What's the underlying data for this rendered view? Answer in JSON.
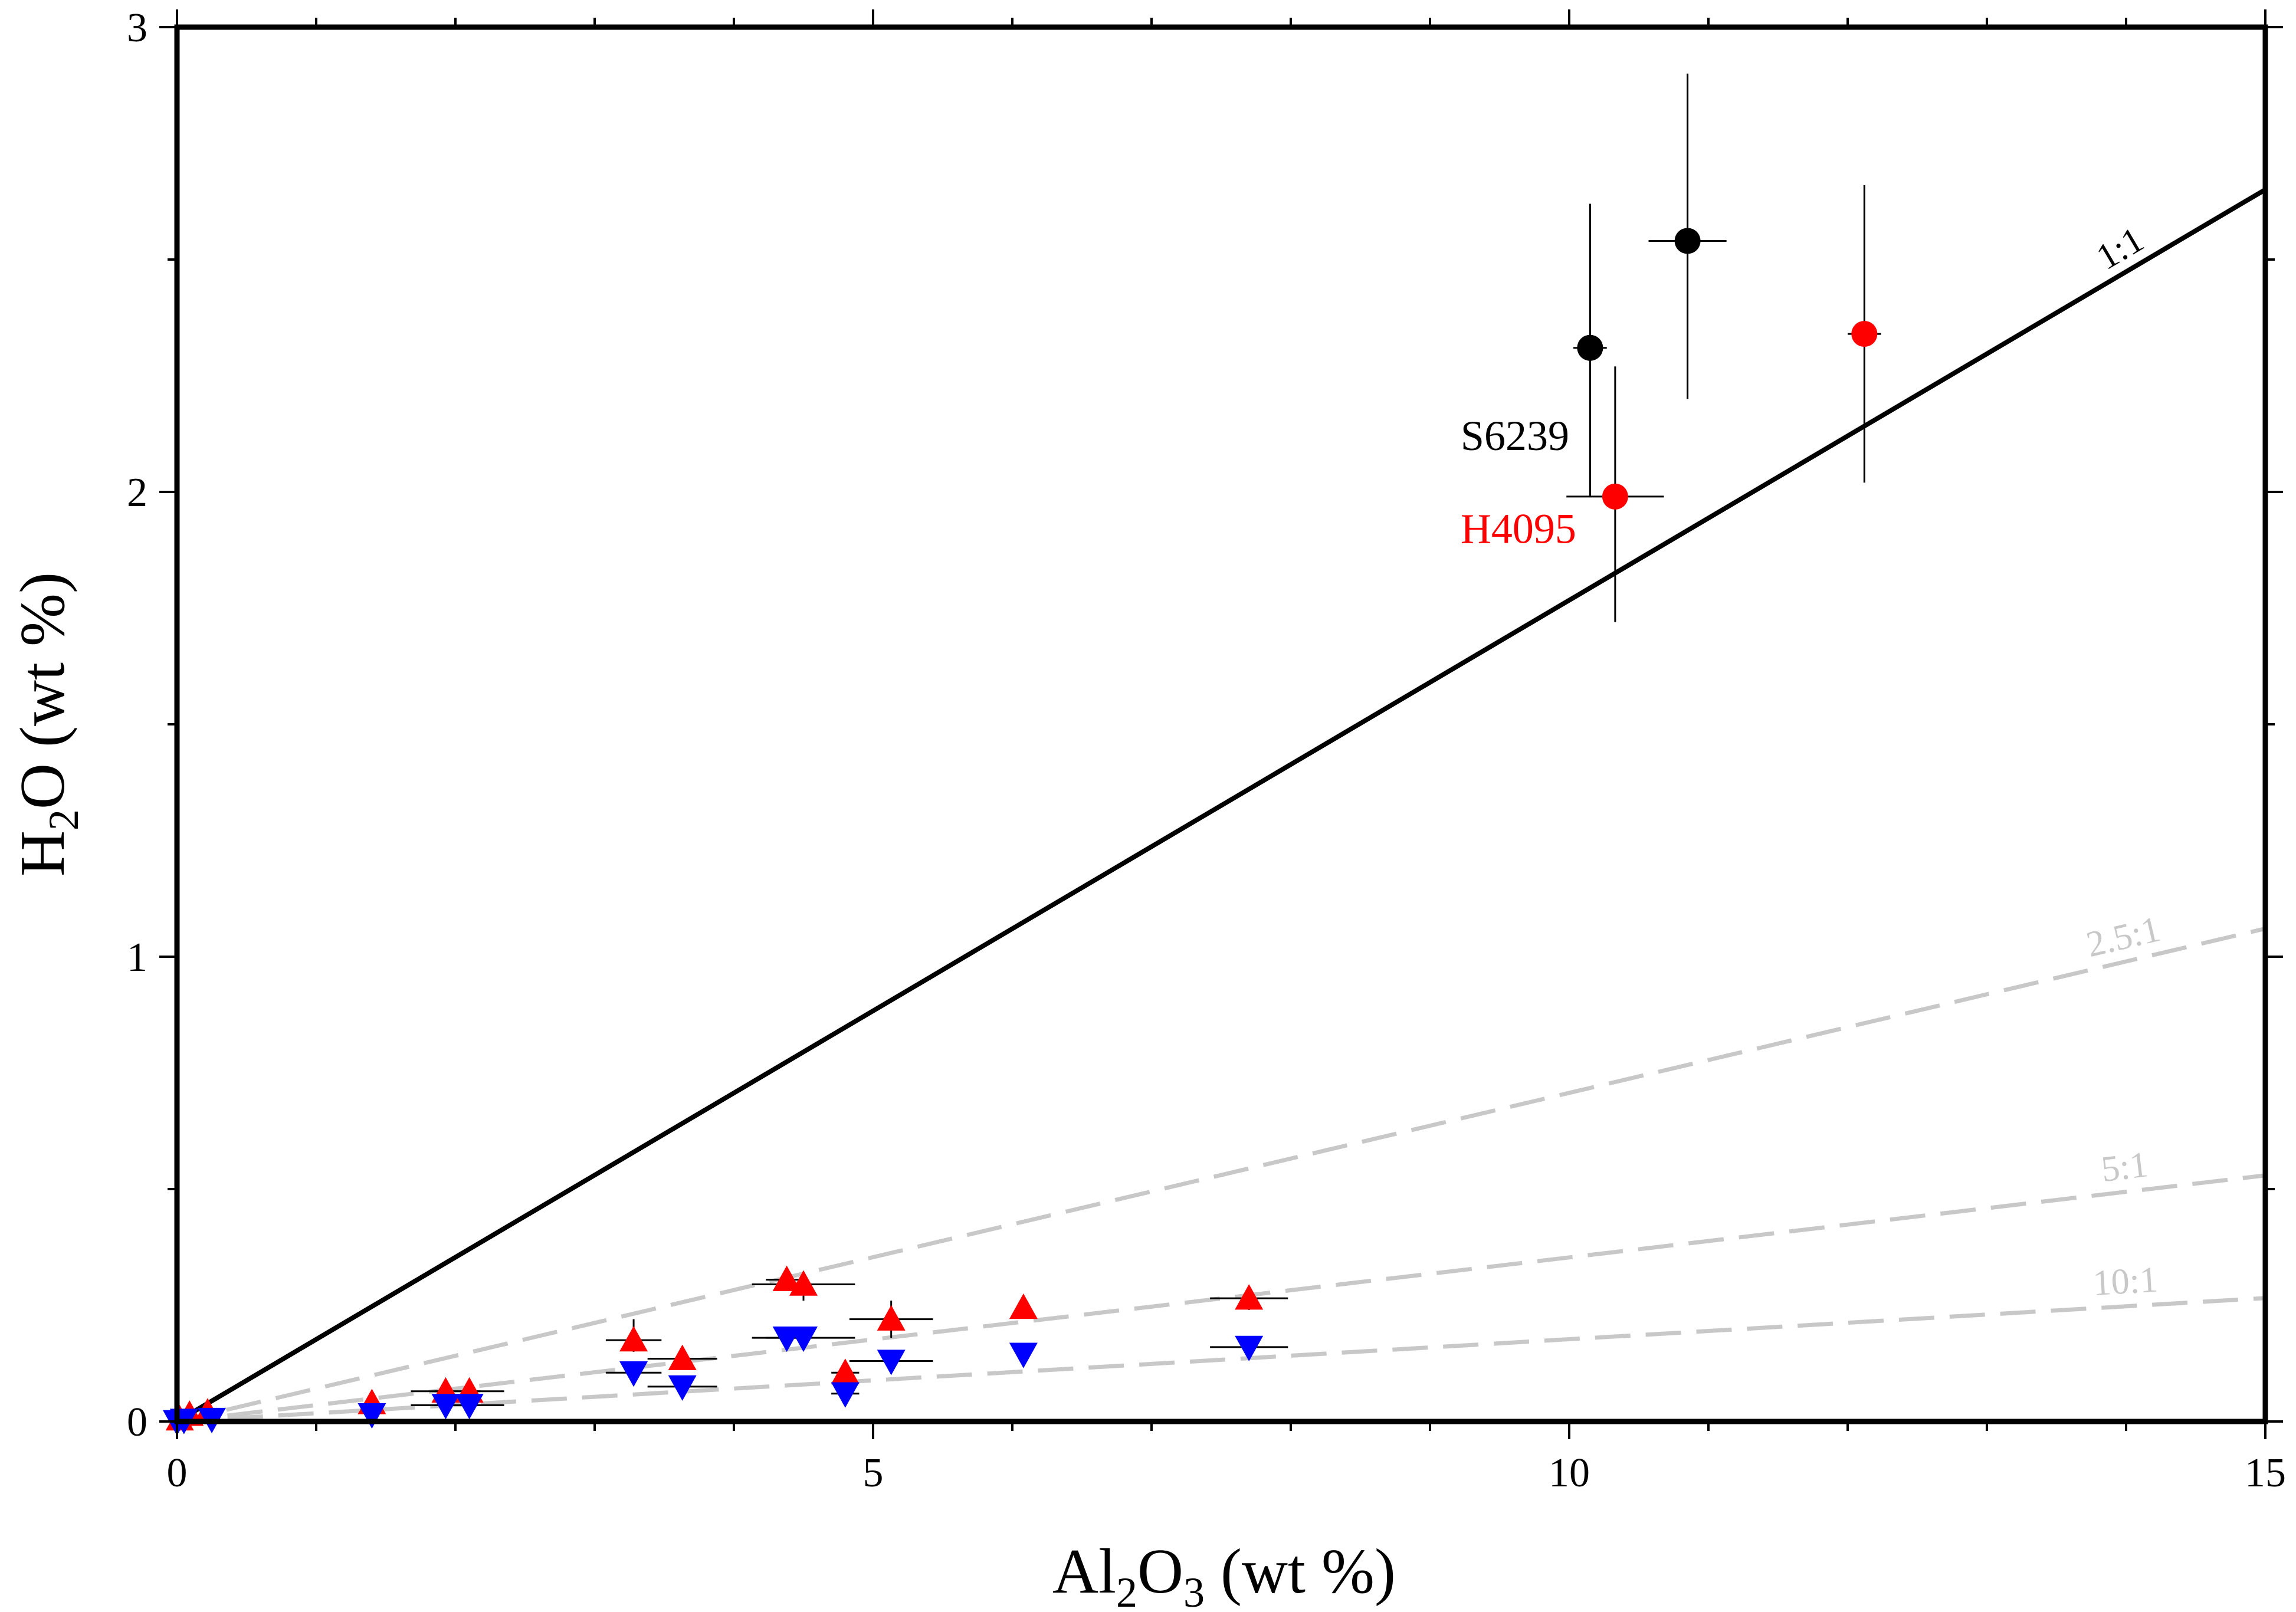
{
  "chart_data": {
    "type": "scatter",
    "title": "",
    "xlabel": {
      "main": "Al",
      "sub": "2",
      "sub_after": "O",
      "sub2": "3",
      "rest": " (wt %)"
    },
    "ylabel": {
      "main": "H",
      "sub": "2",
      "rest": "O (wt %)"
    },
    "xlim": [
      0,
      15
    ],
    "ylim": [
      0,
      3
    ],
    "x_ticks": [
      "0",
      "5",
      "10",
      "15"
    ],
    "x_tick_values": [
      0,
      5,
      10,
      15
    ],
    "y_ticks": [
      "0",
      "1",
      "2",
      "3"
    ],
    "y_tick_values": [
      0,
      1,
      2,
      3
    ],
    "x_minor_step": 1,
    "y_minor_step": 0.5,
    "grid": false,
    "colors": {
      "black": "#000000",
      "red": "#ff0000",
      "blue": "#0000ff",
      "gray": "#c8c8c8"
    },
    "ratio_lines": [
      {
        "label": "1:1",
        "slope": 0.1767,
        "style": "solid",
        "color": "#000000"
      },
      {
        "label": "2.5:1",
        "slope": 0.0707,
        "style": "dashed",
        "color": "#c8c8c8"
      },
      {
        "label": "5:1",
        "slope": 0.0353,
        "style": "dashed",
        "color": "#c8c8c8"
      },
      {
        "label": "10:1",
        "slope": 0.0177,
        "style": "dashed",
        "color": "#c8c8c8"
      }
    ],
    "labels": [
      {
        "text": "S6239",
        "x": 9.22,
        "y": 2.09,
        "color": "#000000"
      },
      {
        "text": "H4095",
        "x": 9.22,
        "y": 1.89,
        "color": "#ff0000"
      }
    ],
    "series": [
      {
        "marker": "circle",
        "color": "#000000",
        "points": [
          {
            "x": 10.15,
            "y": 2.31,
            "xerr": 0.12,
            "ylo": 1.99,
            "yhi": 2.62
          },
          {
            "x": 10.85,
            "y": 2.54,
            "xerr": 0.28,
            "ylo": 2.2,
            "yhi": 2.9
          }
        ]
      },
      {
        "marker": "circle",
        "color": "#ff0000",
        "points": [
          {
            "x": 10.33,
            "y": 1.99,
            "xerr": 0.35,
            "ylo": 1.72,
            "yhi": 2.27
          },
          {
            "x": 12.12,
            "y": 2.34,
            "xerr": 0.12,
            "ylo": 2.02,
            "yhi": 2.66
          }
        ]
      },
      {
        "marker": "triangle-up",
        "color": "#ff0000",
        "points": [
          {
            "x": 0.02,
            "y": 0.005,
            "xerr": 0,
            "ylo": 0.005,
            "yhi": 0.005
          },
          {
            "x": 0.09,
            "y": 0.015,
            "xerr": 0,
            "ylo": 0.015,
            "yhi": 0.015
          },
          {
            "x": 0.22,
            "y": 0.02,
            "xerr": 0,
            "ylo": 0.02,
            "yhi": 0.02
          },
          {
            "x": 1.4,
            "y": 0.04,
            "xerr": 0.05,
            "ylo": 0.04,
            "yhi": 0.04
          },
          {
            "x": 1.93,
            "y": 0.065,
            "xerr": 0.25,
            "ylo": 0.065,
            "yhi": 0.065
          },
          {
            "x": 2.1,
            "y": 0.065,
            "xerr": 0.25,
            "ylo": 0.065,
            "yhi": 0.065
          },
          {
            "x": 3.28,
            "y": 0.175,
            "xerr": 0.2,
            "ylo": 0.15,
            "yhi": 0.22
          },
          {
            "x": 3.63,
            "y": 0.135,
            "xerr": 0.25,
            "ylo": 0.12,
            "yhi": 0.16
          },
          {
            "x": 4.38,
            "y": 0.305,
            "xerr": 0.15,
            "ylo": 0.3,
            "yhi": 0.31
          },
          {
            "x": 4.5,
            "y": 0.295,
            "xerr": 0.37,
            "ylo": 0.26,
            "yhi": 0.32
          },
          {
            "x": 4.8,
            "y": 0.105,
            "xerr": 0.1,
            "ylo": 0.09,
            "yhi": 0.12
          },
          {
            "x": 5.13,
            "y": 0.22,
            "xerr": 0.3,
            "ylo": 0.18,
            "yhi": 0.26
          },
          {
            "x": 6.08,
            "y": 0.245,
            "xerr": 0,
            "ylo": 0.245,
            "yhi": 0.245
          },
          {
            "x": 7.7,
            "y": 0.265,
            "xerr": 0.28,
            "ylo": 0.24,
            "yhi": 0.27
          }
        ]
      },
      {
        "marker": "triangle-down",
        "color": "#0000ff",
        "points": [
          {
            "x": 0.0,
            "y": 0.0,
            "xerr": 0,
            "ylo": 0,
            "yhi": 0
          },
          {
            "x": 0.05,
            "y": 0.003,
            "xerr": 0,
            "ylo": 0.003,
            "yhi": 0.003
          },
          {
            "x": 0.25,
            "y": 0.005,
            "xerr": 0,
            "ylo": 0.005,
            "yhi": 0.005
          },
          {
            "x": 1.4,
            "y": 0.015,
            "xerr": 0.05,
            "ylo": 0.015,
            "yhi": 0.015
          },
          {
            "x": 1.93,
            "y": 0.035,
            "xerr": 0.25,
            "ylo": 0.035,
            "yhi": 0.035
          },
          {
            "x": 2.1,
            "y": 0.035,
            "xerr": 0.25,
            "ylo": 0.035,
            "yhi": 0.035
          },
          {
            "x": 3.28,
            "y": 0.105,
            "xerr": 0.2,
            "ylo": 0.105,
            "yhi": 0.105
          },
          {
            "x": 3.63,
            "y": 0.075,
            "xerr": 0.25,
            "ylo": 0.075,
            "yhi": 0.075
          },
          {
            "x": 4.38,
            "y": 0.18,
            "xerr": 0.15,
            "ylo": 0.18,
            "yhi": 0.18
          },
          {
            "x": 4.5,
            "y": 0.18,
            "xerr": 0.37,
            "ylo": 0.18,
            "yhi": 0.18
          },
          {
            "x": 4.8,
            "y": 0.06,
            "xerr": 0.1,
            "ylo": 0.06,
            "yhi": 0.06
          },
          {
            "x": 5.13,
            "y": 0.13,
            "xerr": 0.3,
            "ylo": 0.13,
            "yhi": 0.13
          },
          {
            "x": 6.08,
            "y": 0.145,
            "xerr": 0,
            "ylo": 0.145,
            "yhi": 0.145
          },
          {
            "x": 7.7,
            "y": 0.16,
            "xerr": 0.28,
            "ylo": 0.16,
            "yhi": 0.16
          }
        ]
      }
    ]
  }
}
